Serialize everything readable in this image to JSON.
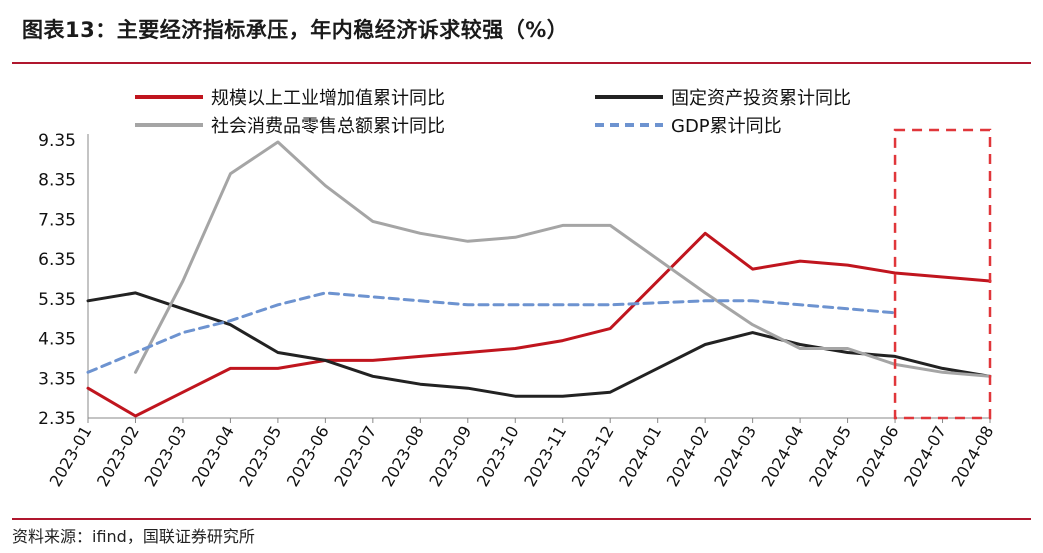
{
  "header": {
    "title": "图表13：主要经济指标承压，年内稳经济诉求较强（%）"
  },
  "footer": {
    "source": "资料来源：ifind，国联证券研究所"
  },
  "chart_data": {
    "type": "line",
    "title": "图表13：主要经济指标承压，年内稳经济诉求较强（%）",
    "xlabel": "",
    "ylabel": "",
    "ylim": [
      2.35,
      9.35
    ],
    "yticks": [
      9.35,
      8.35,
      7.35,
      6.35,
      5.35,
      4.35,
      3.35,
      2.35
    ],
    "categories": [
      "2023-01",
      "2023-02",
      "2023-03",
      "2023-04",
      "2023-05",
      "2023-06",
      "2023-07",
      "2023-08",
      "2023-09",
      "2023-10",
      "2023-11",
      "2023-12",
      "2024-01",
      "2024-02",
      "2024-03",
      "2024-04",
      "2024-05",
      "2024-06",
      "2024-07",
      "2024-08"
    ],
    "legend_position": "top",
    "series": [
      {
        "name": "规模以上工业增加值累计同比",
        "color": "#c0151e",
        "dash": "solid",
        "values": [
          3.1,
          2.4,
          3.0,
          3.6,
          3.6,
          3.8,
          3.8,
          3.9,
          4.0,
          4.1,
          4.3,
          4.6,
          null,
          7.0,
          6.1,
          6.3,
          6.2,
          6.0,
          5.9,
          5.8
        ]
      },
      {
        "name": "固定资产投资累计同比",
        "color": "#222222",
        "dash": "solid",
        "values": [
          5.3,
          5.5,
          5.1,
          4.7,
          4.0,
          3.8,
          3.4,
          3.2,
          3.1,
          2.9,
          2.9,
          3.0,
          null,
          4.2,
          4.5,
          4.2,
          4.0,
          3.9,
          3.6,
          3.4
        ]
      },
      {
        "name": "社会消费品零售总额累计同比",
        "color": "#a5a5a5",
        "dash": "solid",
        "values": [
          null,
          3.5,
          5.8,
          8.5,
          9.3,
          8.2,
          7.3,
          7.0,
          6.8,
          6.9,
          7.2,
          7.2,
          null,
          5.5,
          4.7,
          4.1,
          4.1,
          3.7,
          3.5,
          3.4
        ]
      },
      {
        "name": "GDP累计同比",
        "color": "#6d93d0",
        "dash": "dashed",
        "values": [
          3.5,
          4.0,
          4.5,
          4.8,
          5.2,
          5.5,
          5.4,
          5.3,
          5.2,
          5.2,
          5.2,
          5.2,
          null,
          5.3,
          5.3,
          5.2,
          5.1,
          5.0,
          null,
          null
        ]
      }
    ],
    "highlight_box": {
      "from": "2024-06",
      "to": "2024-08",
      "color": "#e0363a",
      "dash": "dashed"
    }
  }
}
